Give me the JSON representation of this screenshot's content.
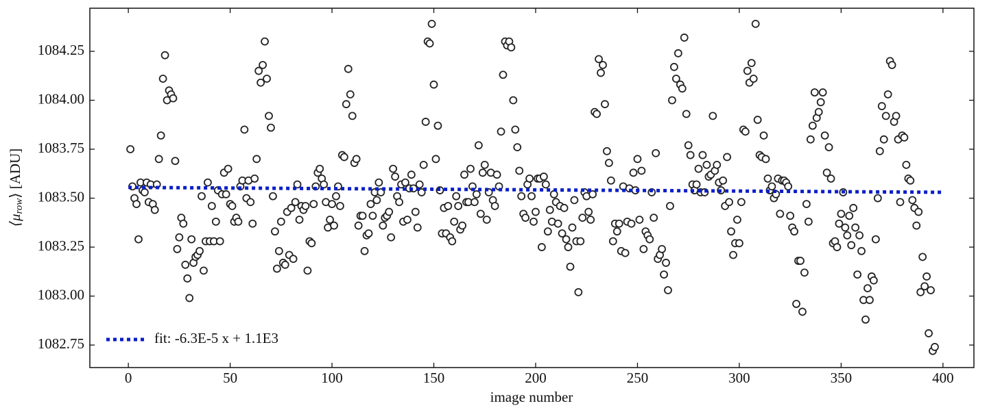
{
  "chart_data": {
    "type": "scatter",
    "xlabel": "image number",
    "ylabel": [
      "⟨μ",
      "row",
      "⟩ [ADU]"
    ],
    "xlim": [
      -18.9,
      415.2
    ],
    "ylim": [
      1082.635,
      1084.47
    ],
    "xticks": [
      0,
      50,
      100,
      150,
      200,
      250,
      300,
      350,
      400
    ],
    "yticks": [
      1082.75,
      {
        "value": 1083.0,
        "label": "1083.00"
      },
      1083.25,
      {
        "value": 1083.5,
        "label": "1083.50"
      },
      1083.75,
      {
        "value": 1084.0,
        "label": "1084.00"
      },
      1084.25
    ],
    "legend": "lower left",
    "x": [
      1,
      2,
      3,
      4,
      5,
      6,
      7,
      8,
      9,
      10,
      11,
      12,
      13,
      14,
      15,
      16,
      17,
      18,
      19,
      20,
      21,
      22,
      23,
      24,
      25,
      26,
      27,
      28,
      29,
      30,
      31,
      32,
      33,
      34,
      35,
      36,
      37,
      38,
      39,
      40,
      41,
      42,
      43,
      44,
      45,
      46,
      47,
      48,
      49,
      50,
      51,
      52,
      53,
      54,
      55,
      56,
      57,
      58,
      59,
      60,
      61,
      62,
      63,
      64,
      65,
      66,
      67,
      68,
      69,
      70,
      71,
      72,
      73,
      74,
      75,
      76,
      77,
      78,
      79,
      80,
      81,
      82,
      83,
      84,
      85,
      86,
      87,
      88,
      89,
      90,
      91,
      92,
      93,
      94,
      95,
      96,
      97,
      98,
      99,
      100,
      101,
      102,
      103,
      104,
      105,
      106,
      107,
      108,
      109,
      110,
      111,
      112,
      113,
      114,
      115,
      116,
      117,
      118,
      119,
      120,
      121,
      122,
      123,
      124,
      125,
      126,
      127,
      128,
      129,
      130,
      131,
      132,
      133,
      134,
      135,
      136,
      137,
      138,
      139,
      140,
      141,
      142,
      143,
      144,
      145,
      146,
      147,
      148,
      149,
      150,
      151,
      152,
      153,
      154,
      155,
      156,
      157,
      158,
      159,
      160,
      161,
      162,
      163,
      164,
      165,
      166,
      167,
      168,
      169,
      170,
      171,
      172,
      173,
      174,
      175,
      176,
      177,
      178,
      179,
      180,
      181,
      182,
      183,
      184,
      185,
      186,
      187,
      188,
      189,
      190,
      191,
      192,
      193,
      194,
      195,
      196,
      197,
      198,
      199,
      200,
      201,
      202,
      203,
      204,
      205,
      206,
      207,
      208,
      209,
      210,
      211,
      212,
      213,
      214,
      215,
      216,
      217,
      218,
      219,
      220,
      221,
      222,
      223,
      224,
      225,
      226,
      227,
      228,
      229,
      230,
      231,
      232,
      233,
      234,
      235,
      236,
      237,
      238,
      239,
      240,
      241,
      242,
      243,
      244,
      245,
      246,
      247,
      248,
      249,
      250,
      251,
      252,
      253,
      254,
      255,
      256,
      257,
      258,
      259,
      260,
      261,
      262,
      263,
      264,
      265,
      266,
      267,
      268,
      269,
      270,
      271,
      272,
      273,
      274,
      275,
      276,
      277,
      278,
      279,
      280,
      281,
      282,
      283,
      284,
      285,
      286,
      287,
      288,
      289,
      290,
      291,
      292,
      293,
      294,
      295,
      296,
      297,
      298,
      299,
      300,
      301,
      302,
      303,
      304,
      305,
      306,
      307,
      308,
      309,
      310,
      311,
      312,
      313,
      314,
      315,
      316,
      317,
      318,
      319,
      320,
      321,
      322,
      323,
      324,
      325,
      326,
      327,
      328,
      329,
      330,
      331,
      332,
      333,
      334,
      335,
      336,
      337,
      338,
      339,
      340,
      341,
      342,
      343,
      344,
      345,
      346,
      347,
      348,
      349,
      350,
      351,
      352,
      353,
      354,
      355,
      356,
      357,
      358,
      359,
      360,
      361,
      362,
      363,
      364,
      365,
      366,
      367,
      368,
      369,
      370,
      371,
      372,
      373,
      374,
      375,
      376,
      377,
      378,
      379,
      380,
      381,
      382,
      383,
      384,
      385,
      386,
      387,
      388,
      389,
      390,
      391,
      392,
      393,
      394,
      395,
      396
    ],
    "series": [
      {
        "color": "#222222",
        "values": [
          1083.75,
          1083.56,
          1083.5,
          1083.47,
          1083.29,
          1083.58,
          1083.54,
          1083.53,
          1083.58,
          1083.48,
          1083.57,
          1083.47,
          1083.44,
          1083.57,
          1083.7,
          1083.82,
          1084.11,
          1084.23,
          1084.0,
          1084.05,
          1084.03,
          1084.01,
          1083.69,
          1083.24,
          1083.3,
          1083.4,
          1083.37,
          1083.16,
          1083.09,
          1082.99,
          1083.29,
          1083.17,
          1083.2,
          1083.21,
          1083.23,
          1083.51,
          1083.13,
          1083.28,
          1083.58,
          1083.28,
          1083.46,
          1083.28,
          1083.38,
          1083.54,
          1083.28,
          1083.52,
          1083.63,
          1083.52,
          1083.65,
          1083.47,
          1083.46,
          1083.38,
          1083.4,
          1083.38,
          1083.56,
          1083.59,
          1083.85,
          1083.5,
          1083.59,
          1083.48,
          1083.37,
          1083.6,
          1083.7,
          1084.15,
          1084.09,
          1084.18,
          1084.3,
          1084.11,
          1083.92,
          1083.86,
          1083.51,
          1083.33,
          1083.14,
          1083.23,
          1083.38,
          1083.17,
          1083.16,
          1083.43,
          1083.21,
          1083.45,
          1083.19,
          1083.48,
          1083.57,
          1083.39,
          1083.46,
          1083.44,
          1083.46,
          1083.13,
          1083.28,
          1083.27,
          1083.47,
          1083.56,
          1083.63,
          1083.65,
          1083.6,
          1083.57,
          1083.48,
          1083.35,
          1083.39,
          1083.47,
          1083.36,
          1083.51,
          1083.56,
          1083.46,
          1083.72,
          1083.71,
          1083.98,
          1084.16,
          1084.03,
          1083.92,
          1083.68,
          1083.7,
          1083.36,
          1083.41,
          1083.41,
          1083.23,
          1083.31,
          1083.32,
          1083.47,
          1083.41,
          1083.53,
          1083.49,
          1083.58,
          1083.53,
          1083.36,
          1083.4,
          1083.41,
          1083.43,
          1083.3,
          1083.65,
          1083.61,
          1083.51,
          1083.48,
          1083.57,
          1083.38,
          1083.58,
          1083.39,
          1083.55,
          1083.62,
          1083.55,
          1083.43,
          1083.35,
          1083.57,
          1083.53,
          1083.67,
          1083.89,
          1084.3,
          1084.29,
          1084.39,
          1084.08,
          1083.7,
          1083.87,
          1083.54,
          1083.32,
          1083.45,
          1083.32,
          1083.46,
          1083.3,
          1083.28,
          1083.38,
          1083.51,
          1083.46,
          1083.34,
          1083.36,
          1083.62,
          1083.48,
          1083.48,
          1083.65,
          1083.56,
          1083.48,
          1083.52,
          1083.77,
          1083.42,
          1083.63,
          1083.67,
          1083.39,
          1083.53,
          1083.63,
          1083.49,
          1083.46,
          1083.62,
          1083.56,
          1083.84,
          1084.13,
          1084.3,
          1084.28,
          1084.3,
          1084.27,
          1084.0,
          1083.85,
          1083.76,
          1083.64,
          1083.51,
          1083.42,
          1083.4,
          1083.57,
          1083.6,
          1083.51,
          1083.38,
          1083.43,
          1083.6,
          1083.6,
          1083.25,
          1083.61,
          1083.57,
          1083.33,
          1083.44,
          1083.38,
          1083.52,
          1083.48,
          1083.37,
          1083.46,
          1083.32,
          1083.45,
          1083.29,
          1083.25,
          1083.15,
          1083.35,
          1083.49,
          1083.28,
          1083.02,
          1083.28,
          1083.4,
          1083.53,
          1083.51,
          1083.43,
          1083.39,
          1083.52,
          1083.94,
          1083.93,
          1084.21,
          1084.14,
          1084.18,
          1083.98,
          1083.74,
          1083.68,
          1083.59,
          1083.28,
          1083.37,
          1083.33,
          1083.37,
          1083.23,
          1083.56,
          1083.22,
          1083.38,
          1083.55,
          1083.37,
          1083.63,
          1083.54,
          1083.7,
          1083.39,
          1083.64,
          1083.24,
          1083.33,
          1083.31,
          1083.29,
          1083.53,
          1083.4,
          1083.73,
          1083.19,
          1083.21,
          1083.24,
          1083.11,
          1083.17,
          1083.03,
          1083.46,
          1084.0,
          1084.17,
          1084.11,
          1084.24,
          1084.08,
          1084.06,
          1084.32,
          1083.93,
          1083.77,
          1083.72,
          1083.57,
          1083.54,
          1083.57,
          1083.65,
          1083.53,
          1083.72,
          1083.53,
          1083.67,
          1083.61,
          1083.62,
          1083.92,
          1083.64,
          1083.67,
          1083.58,
          1083.54,
          1083.59,
          1083.46,
          1083.71,
          1083.48,
          1083.33,
          1083.21,
          1083.27,
          1083.39,
          1083.27,
          1083.48,
          1083.85,
          1083.84,
          1084.15,
          1084.09,
          1084.19,
          1084.11,
          1084.39,
          1083.9,
          1083.72,
          1083.71,
          1083.82,
          1083.7,
          1083.6,
          1083.54,
          1083.56,
          1083.5,
          1083.52,
          1083.6,
          1083.42,
          1083.59,
          1083.59,
          1083.58,
          1083.56,
          1083.41,
          1083.35,
          1083.33,
          1082.96,
          1083.18,
          1083.18,
          1082.92,
          1083.12,
          1083.47,
          1083.38,
          1083.8,
          1083.87,
          1084.04,
          1083.91,
          1083.94,
          1083.99,
          1084.04,
          1083.82,
          1083.63,
          1083.76,
          1083.6,
          1083.27,
          1083.28,
          1083.25,
          1083.37,
          1083.42,
          1083.53,
          1083.35,
          1083.31,
          1083.41,
          1083.26,
          1083.45,
          1083.35,
          1083.11,
          1083.31,
          1083.23,
          1082.98,
          1082.88,
          1083.04,
          1082.98,
          1083.1,
          1083.08,
          1083.29,
          1083.5,
          1083.74,
          1083.97,
          1083.8,
          1083.92,
          1084.03,
          1084.2,
          1084.18,
          1083.89,
          1083.92,
          1083.8,
          1083.48,
          1083.82,
          1083.81,
          1083.67,
          1083.6,
          1083.59,
          1083.49,
          1083.45,
          1083.36,
          1083.43,
          1083.02,
          1083.2,
          1083.05,
          1083.1,
          1082.81,
          1083.03,
          1082.72,
          1082.74
        ]
      }
    ],
    "fit": {
      "name": "fit: -6.3E-5 x + 1.1E3",
      "color": "#0a1ec8",
      "x": [
        0,
        400
      ],
      "values": [
        1083.555,
        1083.53
      ]
    }
  }
}
